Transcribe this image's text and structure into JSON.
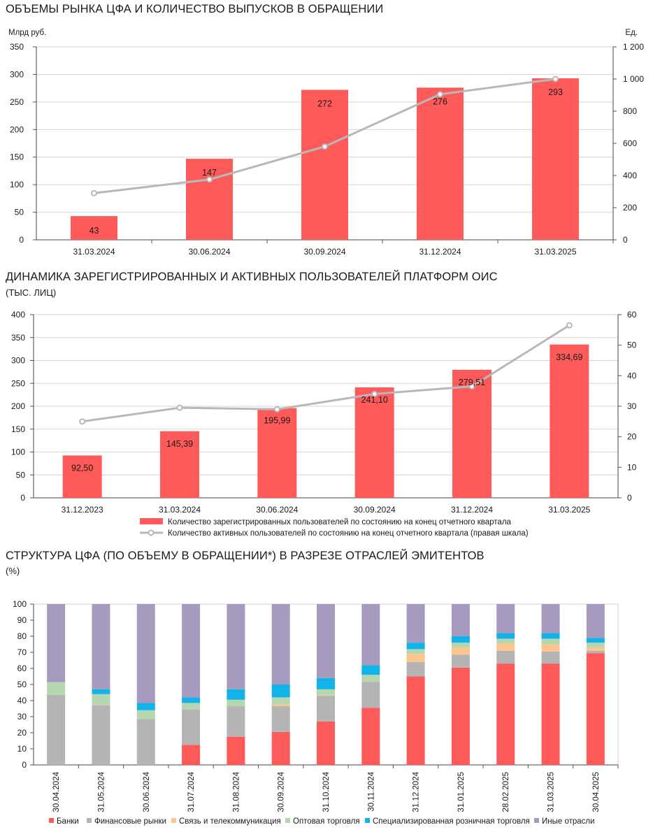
{
  "chart1": {
    "title": "ОБЪЕМЫ РЫНКА ЦФА И КОЛИЧЕСТВО ВЫПУСКОВ В ОБРАЩЕНИИ",
    "left_unit": "Млрд руб.",
    "right_unit": "Ед.",
    "left_ticks": [
      "0",
      "50",
      "100",
      "150",
      "200",
      "250",
      "300",
      "350"
    ],
    "right_ticks": [
      "0",
      "200",
      "400",
      "600",
      "800",
      "1 000",
      "1 200"
    ]
  },
  "chart2": {
    "title": "ДИНАМИКА ЗАРЕГИСТРИРОВАННЫХ И АКТИВНЫХ ПОЛЬЗОВАТЕЛЕЙ ПЛАТФОРМ ОИС",
    "subtitle": "(ТЫС. ЛИЦ)",
    "left_ticks": [
      "0",
      "50",
      "100",
      "150",
      "200",
      "250",
      "300",
      "350",
      "400"
    ],
    "right_ticks": [
      "0",
      "10",
      "20",
      "30",
      "40",
      "50",
      "60"
    ]
  },
  "chart3": {
    "title": "СТРУКТУРА ЦФА (ПО ОБЪЕМУ В ОБРАЩЕНИИ*) В РАЗРЕЗЕ ОТРАСЛЕЙ ЭМИТЕНТОВ",
    "subtitle": "(%)",
    "ticks": [
      "0",
      "10",
      "20",
      "30",
      "40",
      "50",
      "60",
      "70",
      "80",
      "90",
      "100"
    ]
  },
  "colors": {
    "bar_red": "#ff5a5a",
    "line_gray": "#b8b8b8",
    "banks": "#ff5a5a",
    "financial": "#b4b4b4",
    "telecom": "#fdc48c",
    "wholesale": "#b5d7b0",
    "retail": "#12b3e8",
    "other": "#a69bbf"
  },
  "chart_data": [
    {
      "type": "bar",
      "categories": [
        "31.03.2024",
        "30.06.2024",
        "30.09.2024",
        "31.12.2024",
        "31.03.2025"
      ],
      "series": [
        {
          "values": [
            43,
            147,
            272,
            276,
            293
          ],
          "labels": [
            "43",
            "147",
            "272",
            "276",
            "293"
          ]
        },
        {
          "type": "line",
          "axis": "right",
          "values": [
            290,
            375,
            580,
            905,
            1000
          ]
        }
      ],
      "ylim": [
        0,
        350
      ],
      "y2lim": [
        0,
        1200
      ]
    },
    {
      "type": "bar",
      "categories": [
        "31.12.2023",
        "31.03.2024",
        "30.06.2024",
        "30.09.2024",
        "31.12.2024",
        "31.03.2025"
      ],
      "series": [
        {
          "name": "Количество зарегистрированных пользователей по состоянию на конец отчетного квартала",
          "values": [
            92.5,
            145.39,
            195.99,
            241.1,
            279.51,
            334.69
          ],
          "labels": [
            "92,50",
            "145,39",
            "195,99",
            "241,10",
            "279,51",
            "334,69"
          ]
        },
        {
          "name": "Количество активных пользователей по состоянию на конец отчетного квартала (правая шкала)",
          "type": "line",
          "axis": "right",
          "values": [
            25,
            29.5,
            29,
            34,
            36.5,
            56.5
          ]
        }
      ],
      "ylim": [
        0,
        400
      ],
      "y2lim": [
        0,
        60
      ],
      "legend": "bottom"
    },
    {
      "type": "bar",
      "stacked": true,
      "categories": [
        "30.04.2024",
        "31.05.2024",
        "30.06.2024",
        "31.07.2024",
        "31.08.2024",
        "30.09.2024",
        "31.10.2024",
        "30.11.2024",
        "31.12.2024",
        "31.01.2025",
        "28.02.2025",
        "31.03.2025",
        "30.04.2025"
      ],
      "series": [
        {
          "name": "Банки",
          "values": [
            0,
            0,
            0,
            12.5,
            17.5,
            20.5,
            27,
            35.5,
            55,
            60.5,
            63,
            63,
            69.5
          ]
        },
        {
          "name": "Финансовые рынки",
          "values": [
            43.5,
            37,
            28.5,
            22,
            19,
            16,
            16,
            16,
            9,
            8,
            8,
            7.5,
            1.5
          ]
        },
        {
          "name": "Связь и телекоммуникация",
          "values": [
            0,
            0,
            0,
            0,
            0,
            1,
            0.5,
            0,
            5,
            4.5,
            4.5,
            4.5,
            2
          ]
        },
        {
          "name": "Оптовая торговля",
          "values": [
            8,
            7,
            5.5,
            4,
            4,
            4.5,
            3.5,
            4.5,
            3,
            3,
            3,
            3.5,
            3
          ]
        },
        {
          "name": "Специализированная розничная торговля",
          "values": [
            0,
            3,
            4.5,
            3.5,
            6.5,
            8,
            7,
            6,
            4,
            4,
            3.5,
            3.5,
            3
          ]
        },
        {
          "name": "Иные отрасли",
          "values": [
            48.5,
            53,
            61.5,
            58,
            53,
            50,
            46,
            38,
            24,
            20,
            18,
            18,
            21
          ]
        }
      ],
      "ylim": [
        0,
        100
      ],
      "legend": "bottom"
    }
  ]
}
